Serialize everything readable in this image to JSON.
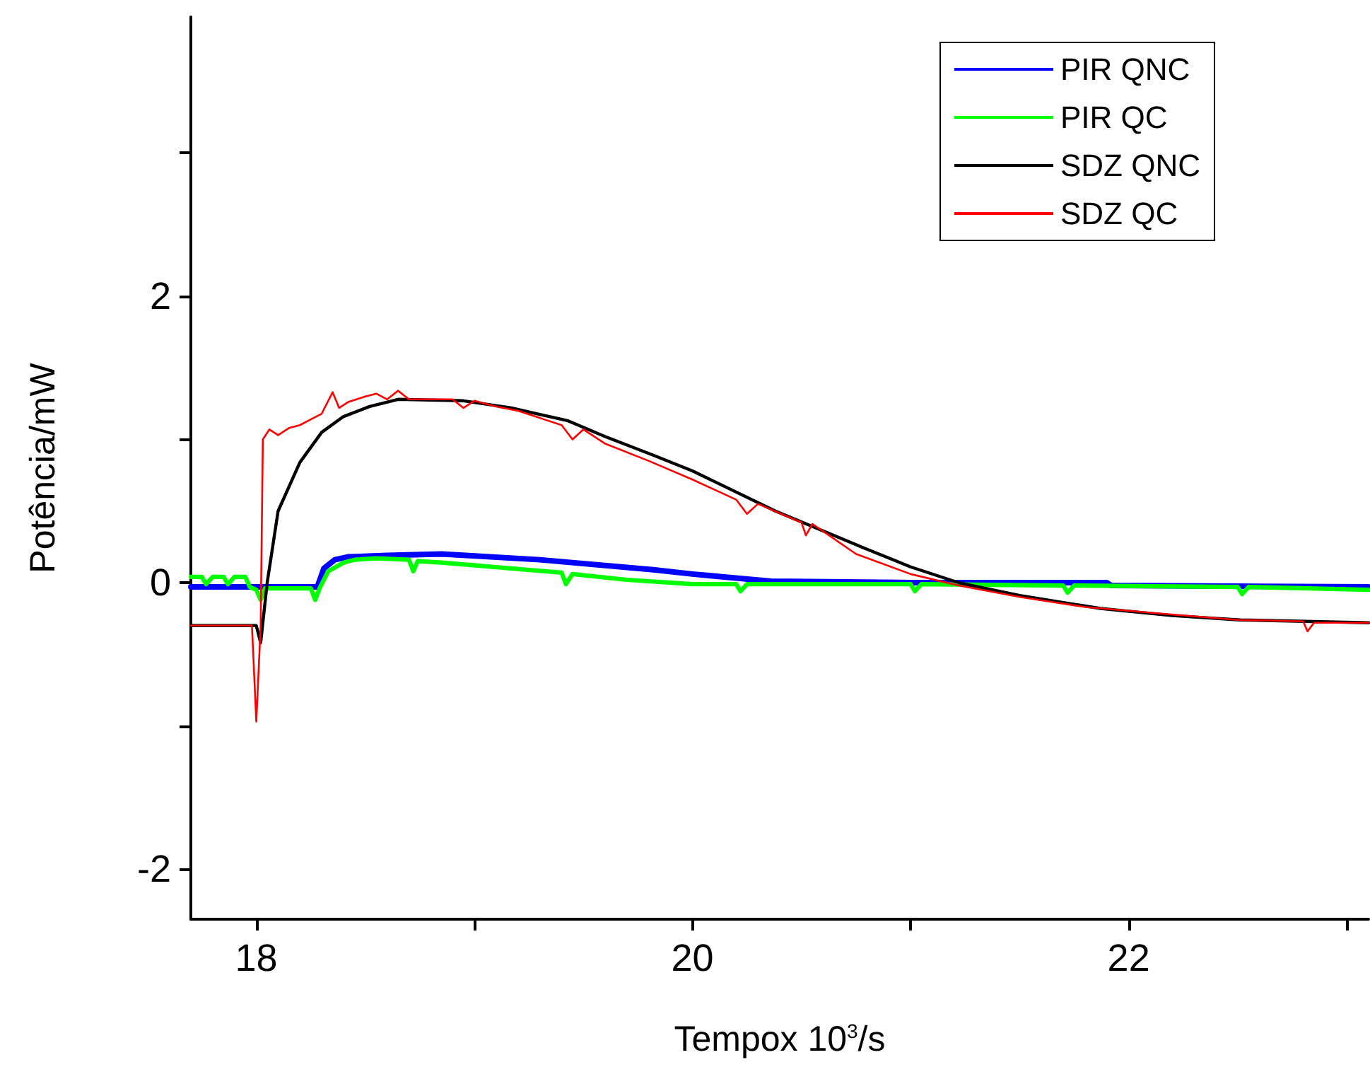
{
  "chart_data": {
    "type": "line",
    "xlabel": "Tempox 10$^{3}$/s",
    "ylabel": "Potência/mW",
    "xlim": [
      17.7,
      23.1
    ],
    "ylim": [
      -2.35,
      3.95
    ],
    "xticks": [
      18,
      {
        "value": 19,
        "label": null
      },
      20,
      {
        "value": 21,
        "label": null
      },
      22,
      {
        "value": 23,
        "label": null
      }
    ],
    "yticks": [
      -2,
      {
        "value": -1,
        "label": null
      },
      0,
      {
        "value": 1,
        "label": null
      },
      2,
      {
        "value": 3,
        "label": null
      }
    ],
    "grid": false,
    "legend": "top right",
    "marker": "none",
    "line_style": "solid",
    "series": [
      {
        "name": "PIR QNC",
        "color": "#0000ff",
        "x": [
          17.7,
          18.28,
          18.31,
          18.36,
          18.42,
          18.6,
          18.85,
          19.3,
          19.82,
          20.0,
          20.36,
          21.0,
          21.9,
          21.92,
          23.1
        ],
        "values": [
          -0.03,
          -0.03,
          0.1,
          0.16,
          0.18,
          0.19,
          0.2,
          0.16,
          0.09,
          0.06,
          0.01,
          0.0,
          0.0,
          -0.02,
          -0.03
        ]
      },
      {
        "name": "PIR QC",
        "color": "#00ff00",
        "x": [
          17.7,
          17.75,
          17.77,
          17.8,
          17.85,
          17.87,
          17.9,
          17.95,
          17.97,
          18.0,
          18.02,
          18.04,
          18.25,
          18.27,
          18.29,
          18.33,
          18.4,
          18.45,
          18.55,
          18.7,
          18.72,
          18.74,
          18.85,
          19.4,
          19.42,
          19.45,
          19.7,
          20.0,
          20.2,
          20.22,
          20.25,
          21.0,
          21.02,
          21.05,
          21.7,
          21.72,
          21.75,
          22.5,
          22.52,
          22.55,
          23.1
        ],
        "values": [
          0.04,
          0.04,
          -0.01,
          0.04,
          0.04,
          -0.01,
          0.04,
          0.04,
          -0.03,
          -0.05,
          -0.12,
          -0.04,
          -0.04,
          -0.12,
          -0.04,
          0.08,
          0.14,
          0.16,
          0.17,
          0.16,
          0.08,
          0.15,
          0.14,
          0.07,
          -0.01,
          0.06,
          0.02,
          -0.01,
          -0.01,
          -0.06,
          -0.01,
          -0.01,
          -0.06,
          -0.01,
          -0.02,
          -0.07,
          -0.02,
          -0.03,
          -0.08,
          -0.03,
          -0.05
        ]
      },
      {
        "name": "SDZ QNC",
        "color": "#000000",
        "x": [
          17.7,
          18.0,
          18.02,
          18.05,
          18.1,
          18.2,
          18.3,
          18.4,
          18.52,
          18.65,
          18.95,
          19.17,
          19.43,
          19.6,
          19.82,
          20.0,
          20.38,
          20.79,
          21.0,
          21.22,
          21.5,
          21.87,
          22.2,
          22.51,
          23.1
        ],
        "values": [
          -0.3,
          -0.3,
          -0.42,
          0.0,
          0.5,
          0.84,
          1.05,
          1.16,
          1.23,
          1.28,
          1.27,
          1.22,
          1.13,
          1.02,
          0.89,
          0.78,
          0.5,
          0.24,
          0.11,
          0.0,
          -0.09,
          -0.18,
          -0.23,
          -0.26,
          -0.28
        ]
      },
      {
        "name": "SDZ QC",
        "color": "#ff0000",
        "x": [
          17.7,
          17.98,
          18.0,
          18.02,
          18.03,
          18.06,
          18.1,
          18.15,
          18.2,
          18.25,
          18.3,
          18.35,
          18.38,
          18.42,
          18.5,
          18.55,
          18.6,
          18.65,
          18.7,
          18.9,
          18.95,
          19.0,
          19.1,
          19.2,
          19.3,
          19.4,
          19.45,
          19.5,
          19.6,
          19.8,
          20.0,
          20.2,
          20.25,
          20.3,
          20.5,
          20.52,
          20.55,
          20.75,
          21.0,
          21.22,
          21.5,
          21.8,
          22.1,
          22.5,
          22.8,
          22.82,
          22.85,
          23.1
        ],
        "values": [
          -0.3,
          -0.3,
          -0.97,
          -0.3,
          1.0,
          1.07,
          1.03,
          1.08,
          1.1,
          1.14,
          1.18,
          1.33,
          1.22,
          1.26,
          1.3,
          1.32,
          1.28,
          1.34,
          1.28,
          1.28,
          1.22,
          1.27,
          1.23,
          1.2,
          1.15,
          1.1,
          1.0,
          1.07,
          0.97,
          0.85,
          0.72,
          0.58,
          0.48,
          0.55,
          0.42,
          0.33,
          0.41,
          0.2,
          0.06,
          -0.02,
          -0.1,
          -0.17,
          -0.21,
          -0.26,
          -0.27,
          -0.34,
          -0.28,
          -0.28
        ]
      }
    ]
  }
}
